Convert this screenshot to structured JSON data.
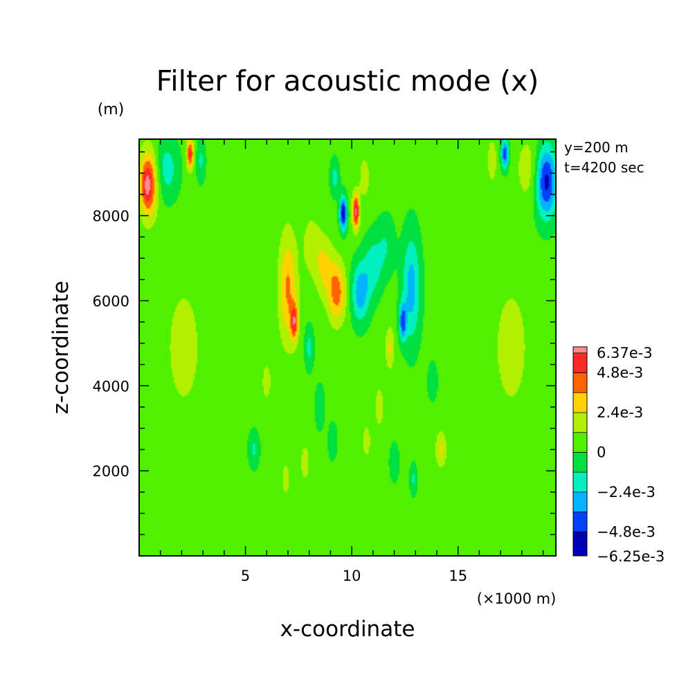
{
  "chart_data": {
    "type": "heatmap",
    "title": "Filter for acoustic mode (x)",
    "xlabel": "x-coordinate",
    "ylabel": "z-coordinate",
    "xunit": "(×1000 m)",
    "yunit": "(m)",
    "xlim": [
      0,
      19.6
    ],
    "ylim": [
      0,
      9800
    ],
    "xticks": [
      5,
      10,
      15
    ],
    "yticks": [
      2000,
      4000,
      6000,
      8000
    ],
    "x_tick_labels": [
      "5",
      "10",
      "15"
    ],
    "y_tick_labels": [
      "2000",
      "4000",
      "6000",
      "8000"
    ],
    "annotations": [
      "y=200 m",
      "t=4200 sec"
    ],
    "colorbar": {
      "max_label": "6.37e-3",
      "min_label": "-6.25e-3",
      "max": 0.00637,
      "min": -0.00625,
      "levels": [
        -0.00625,
        -0.0048,
        -0.0036,
        -0.0024,
        -0.0012,
        0,
        0.0012,
        0.0024,
        0.0036,
        0.0048,
        0.006,
        0.00637
      ],
      "colors": [
        "#8c00a0",
        "#0000b4",
        "#0040ff",
        "#00b4ff",
        "#00f0c0",
        "#00e040",
        "#50f000",
        "#b0f000",
        "#ffd200",
        "#ff6400",
        "#ff2828",
        "#ff8c8c"
      ],
      "labels": [
        {
          "value": 0.00637,
          "text": "6.37e-3"
        },
        {
          "value": 0.0048,
          "text": "4.8e-3"
        },
        {
          "value": 0.0024,
          "text": "2.4e-3"
        },
        {
          "value": 0,
          "text": "0"
        },
        {
          "value": -0.0024,
          "text": "−2.4e-3"
        },
        {
          "value": -0.0048,
          "text": "−4.8e-3"
        },
        {
          "value": -0.00625,
          "text": "−6.25e-3"
        }
      ]
    },
    "background_value": 0.0004,
    "features": [
      {
        "x": 0.45,
        "z": 8750,
        "sx": 0.3,
        "sz": 550,
        "value": 0.0052
      },
      {
        "x": 0.35,
        "z": 8700,
        "sx": 0.15,
        "sz": 300,
        "value": 0.0014
      },
      {
        "x": 1.3,
        "z": 9100,
        "sx": 0.4,
        "sz": 500,
        "value": -0.0022
      },
      {
        "x": 2.4,
        "z": 9450,
        "sx": 0.12,
        "sz": 250,
        "value": 0.005
      },
      {
        "x": 2.9,
        "z": 9300,
        "sx": 0.15,
        "sz": 350,
        "value": -0.0018
      },
      {
        "x": 19.15,
        "z": 8800,
        "sx": 0.35,
        "sz": 600,
        "value": -0.0056
      },
      {
        "x": 18.3,
        "z": 9100,
        "sx": 0.4,
        "sz": 550,
        "value": 0.0015
      },
      {
        "x": 17.2,
        "z": 9450,
        "sx": 0.12,
        "sz": 250,
        "value": -0.0048
      },
      {
        "x": 16.6,
        "z": 9300,
        "sx": 0.15,
        "sz": 350,
        "value": 0.0018
      },
      {
        "x": 9.6,
        "z": 8050,
        "sx": 0.12,
        "sz": 280,
        "value": -0.006
      },
      {
        "x": 10.2,
        "z": 8100,
        "sx": 0.12,
        "sz": 300,
        "value": 0.0058
      },
      {
        "x": 9.2,
        "z": 8900,
        "sx": 0.15,
        "sz": 300,
        "value": -0.002
      },
      {
        "x": 10.6,
        "z": 8900,
        "sx": 0.15,
        "sz": 300,
        "value": 0.002
      },
      {
        "x": 7.0,
        "z": 6300,
        "sx": 0.3,
        "sz": 900,
        "value": 0.0034
      },
      {
        "x": 7.3,
        "z": 5500,
        "sx": 0.12,
        "sz": 300,
        "value": 0.0045
      },
      {
        "x": 9.3,
        "z": 6200,
        "sx": 0.3,
        "sz": 500,
        "value": 0.0038
      },
      {
        "x": 8.7,
        "z": 6800,
        "sx": 0.3,
        "sz": 500,
        "value": 0.0022
      },
      {
        "x": 8.1,
        "z": 7300,
        "sx": 0.3,
        "sz": 500,
        "value": 0.0015
      },
      {
        "x": 10.4,
        "z": 6200,
        "sx": 0.3,
        "sz": 500,
        "value": -0.0036
      },
      {
        "x": 11.0,
        "z": 6800,
        "sx": 0.3,
        "sz": 500,
        "value": -0.0022
      },
      {
        "x": 11.6,
        "z": 7300,
        "sx": 0.3,
        "sz": 500,
        "value": -0.0015
      },
      {
        "x": 12.8,
        "z": 6300,
        "sx": 0.3,
        "sz": 900,
        "value": -0.0034
      },
      {
        "x": 12.4,
        "z": 5500,
        "sx": 0.12,
        "sz": 300,
        "value": -0.0042
      },
      {
        "x": 8.0,
        "z": 4900,
        "sx": 0.15,
        "sz": 350,
        "value": -0.002
      },
      {
        "x": 11.8,
        "z": 4900,
        "sx": 0.15,
        "sz": 350,
        "value": 0.0022
      },
      {
        "x": 8.5,
        "z": 3500,
        "sx": 0.15,
        "sz": 350,
        "value": -0.0016
      },
      {
        "x": 11.3,
        "z": 3500,
        "sx": 0.15,
        "sz": 350,
        "value": 0.0016
      },
      {
        "x": 5.4,
        "z": 2500,
        "sx": 0.18,
        "sz": 300,
        "value": -0.0018
      },
      {
        "x": 14.2,
        "z": 2500,
        "sx": 0.18,
        "sz": 300,
        "value": 0.0022
      },
      {
        "x": 6.0,
        "z": 4100,
        "sx": 0.15,
        "sz": 300,
        "value": 0.0016
      },
      {
        "x": 13.8,
        "z": 4100,
        "sx": 0.15,
        "sz": 300,
        "value": -0.0016
      },
      {
        "x": 7.8,
        "z": 2200,
        "sx": 0.15,
        "sz": 300,
        "value": 0.0016
      },
      {
        "x": 12.0,
        "z": 2200,
        "sx": 0.15,
        "sz": 300,
        "value": -0.0016
      },
      {
        "x": 6.9,
        "z": 1800,
        "sx": 0.12,
        "sz": 250,
        "value": 0.0018
      },
      {
        "x": 12.9,
        "z": 1800,
        "sx": 0.12,
        "sz": 250,
        "value": -0.0018
      },
      {
        "x": 9.1,
        "z": 2700,
        "sx": 0.15,
        "sz": 300,
        "value": -0.0014
      },
      {
        "x": 10.7,
        "z": 2700,
        "sx": 0.15,
        "sz": 300,
        "value": 0.0014
      },
      {
        "x": 2.1,
        "z": 4900,
        "sx": 0.5,
        "sz": 900,
        "value": 0.0018
      },
      {
        "x": 17.5,
        "z": 4900,
        "sx": 0.5,
        "sz": 900,
        "value": 0.0018
      }
    ]
  }
}
